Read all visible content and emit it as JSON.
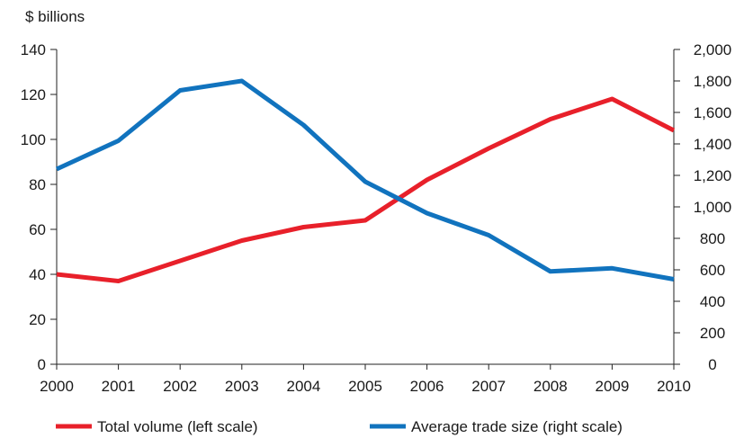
{
  "chart_data": {
    "type": "line",
    "x": [
      "2000",
      "2001",
      "2002",
      "2003",
      "2004",
      "2005",
      "2006",
      "2007",
      "2008",
      "2009",
      "2010"
    ],
    "y_left_label": "$ billions",
    "y_left_lim": [
      0,
      140
    ],
    "y_left_ticks": [
      "0",
      "20",
      "40",
      "60",
      "80",
      "100",
      "120",
      "140"
    ],
    "y_right_lim": [
      0,
      2000
    ],
    "y_right_ticks": [
      "0",
      "200",
      "400",
      "600",
      "800",
      "1,000",
      "1,200",
      "1,400",
      "1,600",
      "1,800",
      "2,000"
    ],
    "grid": false,
    "legend_position": "bottom",
    "series": [
      {
        "name": "Total volume (left scale)",
        "axis": "left",
        "color": "#e8202a",
        "values": [
          40,
          37,
          46,
          55,
          61,
          64,
          82,
          96,
          109,
          118,
          104
        ]
      },
      {
        "name": "Average trade size (right scale)",
        "axis": "right",
        "color": "#1173be",
        "values": [
          1240,
          1420,
          1740,
          1800,
          1520,
          1160,
          960,
          820,
          590,
          610,
          540
        ]
      }
    ]
  }
}
